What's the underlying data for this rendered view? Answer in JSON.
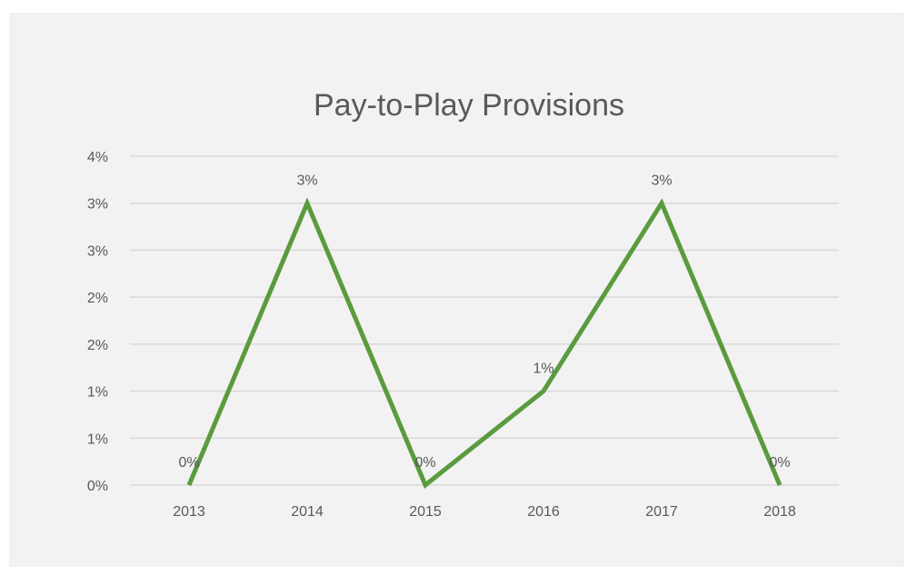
{
  "chart_data": {
    "type": "line",
    "title": "Pay-to-Play Provisions",
    "xlabel": "",
    "ylabel": "",
    "categories": [
      "2013",
      "2014",
      "2015",
      "2016",
      "2017",
      "2018"
    ],
    "series": [
      {
        "values": [
          0,
          3,
          0,
          1,
          3,
          0
        ],
        "data_labels": [
          "0%",
          "3%",
          "0%",
          "1%",
          "3%",
          "0%"
        ],
        "color": "#5a9b3e"
      }
    ],
    "y_ticks": [
      {
        "value": 0,
        "label": "0%"
      },
      {
        "value": 0.5,
        "label": "1%"
      },
      {
        "value": 1,
        "label": "1%"
      },
      {
        "value": 1.5,
        "label": "2%"
      },
      {
        "value": 2,
        "label": "2%"
      },
      {
        "value": 2.5,
        "label": "3%"
      },
      {
        "value": 3,
        "label": "3%"
      },
      {
        "value": 3.5,
        "label": "4%"
      }
    ],
    "ylim": [
      0,
      3.5
    ],
    "grid": true,
    "legend": "none",
    "colors": {
      "background": "#f2f2f2",
      "gridline": "#d9d9d9",
      "axis_text": "#595959",
      "title_text": "#595959"
    }
  }
}
